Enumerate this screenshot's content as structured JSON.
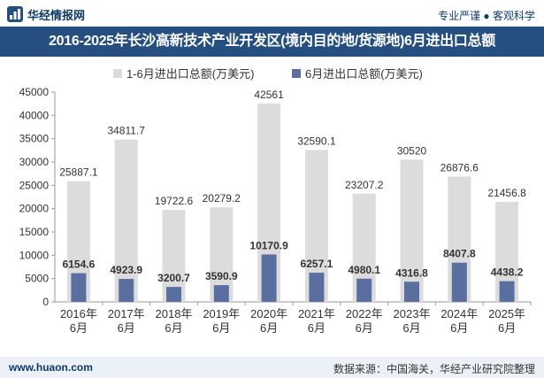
{
  "header": {
    "brand": "华经情报网",
    "slogan": "专业严谨 ● 客观科学"
  },
  "chart_data": {
    "type": "bar",
    "title": "2016-2025年长沙高新技术产业开发区(境内目的地/货源地)6月进出口总额",
    "categories": [
      "2016年\n6月",
      "2017年\n6月",
      "2018年\n6月",
      "2019年\n6月",
      "2020年\n6月",
      "2021年\n6月",
      "2022年\n6月",
      "2023年\n6月",
      "2024年\n6月",
      "2025年\n6月"
    ],
    "series": [
      {
        "name": "1-6月进出口总额(万美元)",
        "color": "#dcdcdc",
        "values": [
          25887.1,
          34811.7,
          19722.6,
          20279.2,
          42561,
          32590.1,
          23207.2,
          30520,
          26876.6,
          21456.8
        ],
        "labels": [
          "25887.1",
          "34811.7",
          "19722.6",
          "20279.2",
          "42561",
          "32590.1",
          "23207.2",
          "30520",
          "26876.6",
          "21456.8"
        ]
      },
      {
        "name": "6月进出口总额(万美元)",
        "color": "#5a6fa0",
        "values": [
          6154.6,
          4923.9,
          3200.7,
          3590.9,
          10170.9,
          6257.1,
          4980.1,
          4316.8,
          8407.8,
          4438.2
        ],
        "labels": [
          "6154.6",
          "4923.9",
          "3200.7",
          "3590.9",
          "10170.9",
          "6257.1",
          "4980.1",
          "4316.8",
          "8407.8",
          "4438.2"
        ]
      }
    ],
    "ylim": [
      0,
      45000
    ],
    "yticks": [
      "0",
      "5000",
      "10000",
      "15000",
      "20000",
      "25000",
      "30000",
      "35000",
      "40000",
      "45000"
    ],
    "grid": false,
    "legend_position": "top"
  },
  "footer": {
    "site": "www.huaon.com",
    "source": "数据来源：中国海关，华经产业研究院整理"
  }
}
